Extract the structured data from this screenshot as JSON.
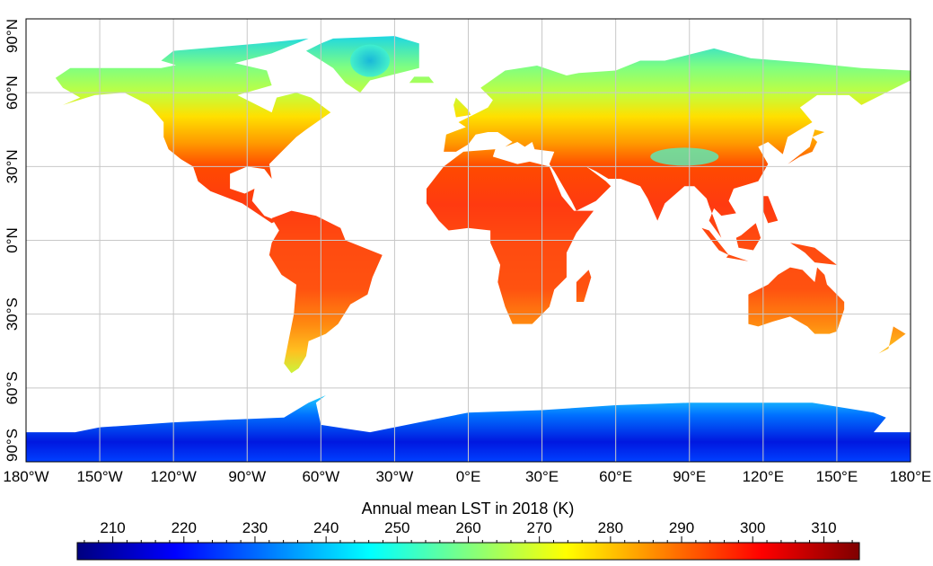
{
  "map": {
    "lon_labels": [
      "180°W",
      "150°W",
      "120°W",
      "90°W",
      "60°W",
      "30°W",
      "0°E",
      "30°E",
      "60°E",
      "90°E",
      "120°E",
      "150°E",
      "180°E"
    ],
    "lat_labels": [
      "90°N",
      "60°N",
      "30°N",
      "0°N",
      "30°S",
      "60°S",
      "90°S"
    ],
    "extent": {
      "lon": [
        -180,
        180
      ],
      "lat": [
        -90,
        90
      ]
    },
    "grid": true
  },
  "colorbar": {
    "title": "Annual mean LST in 2018 (K)",
    "range": [
      205,
      315
    ],
    "ticks": [
      "210",
      "220",
      "230",
      "240",
      "250",
      "260",
      "270",
      "280",
      "290",
      "300",
      "310"
    ],
    "colormap": [
      "#00007f",
      "#0000ff",
      "#0080ff",
      "#00ffff",
      "#80ff80",
      "#ffff00",
      "#ff8000",
      "#ff0000",
      "#7f0000"
    ]
  }
}
